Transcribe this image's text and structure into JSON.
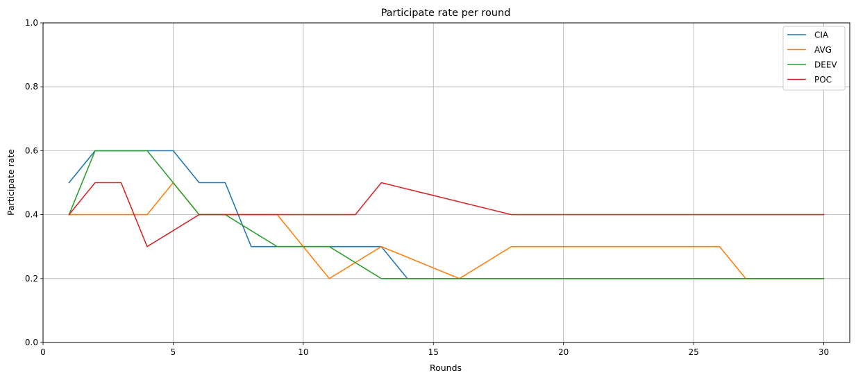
{
  "chart_data": {
    "type": "line",
    "title": "Participate rate per round",
    "xlabel": "Rounds",
    "ylabel": "Participate rate",
    "xlim": [
      0,
      31
    ],
    "ylim": [
      0,
      1.0
    ],
    "xticks": [
      0,
      5,
      10,
      15,
      20,
      25,
      30
    ],
    "yticks": [
      0.0,
      0.2,
      0.4,
      0.6,
      0.8,
      1.0
    ],
    "xtick_labels": [
      "0",
      "5",
      "10",
      "15",
      "20",
      "25",
      "30"
    ],
    "ytick_labels": [
      "0.0",
      "0.2",
      "0.4",
      "0.6",
      "0.8",
      "1.0"
    ],
    "grid": true,
    "legend_position": "top-right",
    "x": [
      1,
      2,
      3,
      4,
      5,
      6,
      7,
      8,
      9,
      10,
      11,
      12,
      13,
      14,
      15,
      16,
      17,
      18,
      19,
      20,
      21,
      22,
      23,
      24,
      25,
      26,
      27,
      28,
      29,
      30
    ],
    "series": [
      {
        "name": "CIA",
        "color": "#1f77b4",
        "values": [
          0.5,
          0.6,
          0.6,
          0.6,
          0.6,
          0.5,
          0.5,
          0.3,
          0.3,
          0.3,
          0.3,
          0.3,
          0.3,
          0.2,
          0.2,
          0.2,
          0.2,
          0.2,
          0.2,
          0.2,
          0.2,
          0.2,
          0.2,
          0.2,
          0.2,
          0.2,
          0.2,
          0.2,
          0.2,
          0.2
        ]
      },
      {
        "name": "AVG",
        "color": "#ff7f0e",
        "values": [
          0.4,
          0.4,
          0.4,
          0.4,
          0.5,
          0.4,
          0.4,
          0.4,
          0.4,
          0.3,
          0.2,
          0.25,
          0.3,
          0.2667,
          0.2333,
          0.2,
          0.25,
          0.3,
          0.3,
          0.3,
          0.3,
          0.3,
          0.3,
          0.3,
          0.3,
          0.3,
          0.2,
          0.2,
          0.2,
          0.2
        ]
      },
      {
        "name": "DEEV",
        "color": "#2ca02c",
        "values": [
          0.4,
          0.6,
          0.6,
          0.6,
          0.5,
          0.4,
          0.4,
          0.35,
          0.3,
          0.3,
          0.3,
          0.25,
          0.2,
          0.2,
          0.2,
          0.2,
          0.2,
          0.2,
          0.2,
          0.2,
          0.2,
          0.2,
          0.2,
          0.2,
          0.2,
          0.2,
          0.2,
          0.2,
          0.2,
          0.2
        ]
      },
      {
        "name": "POC",
        "color": "#d62728",
        "values": [
          0.4,
          0.5,
          0.5,
          0.3,
          0.35,
          0.4,
          0.4,
          0.4,
          0.4,
          0.4,
          0.4,
          0.4,
          0.5,
          0.48,
          0.46,
          0.44,
          0.42,
          0.4,
          0.4,
          0.4,
          0.4,
          0.4,
          0.4,
          0.4,
          0.4,
          0.4,
          0.4,
          0.4,
          0.4,
          0.4
        ]
      }
    ]
  }
}
